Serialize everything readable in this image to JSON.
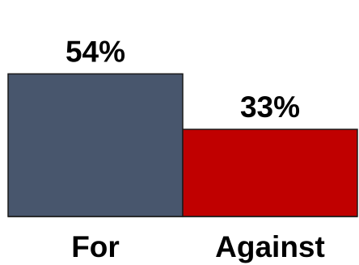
{
  "chart_data": {
    "type": "bar",
    "categories": [
      "For",
      "Against"
    ],
    "values": [
      54,
      33
    ],
    "value_labels": [
      "54%",
      "33%"
    ],
    "ylim": [
      0,
      63
    ],
    "grid": false,
    "legend": "none",
    "colors": [
      "#48566d",
      "#c00000"
    ]
  }
}
